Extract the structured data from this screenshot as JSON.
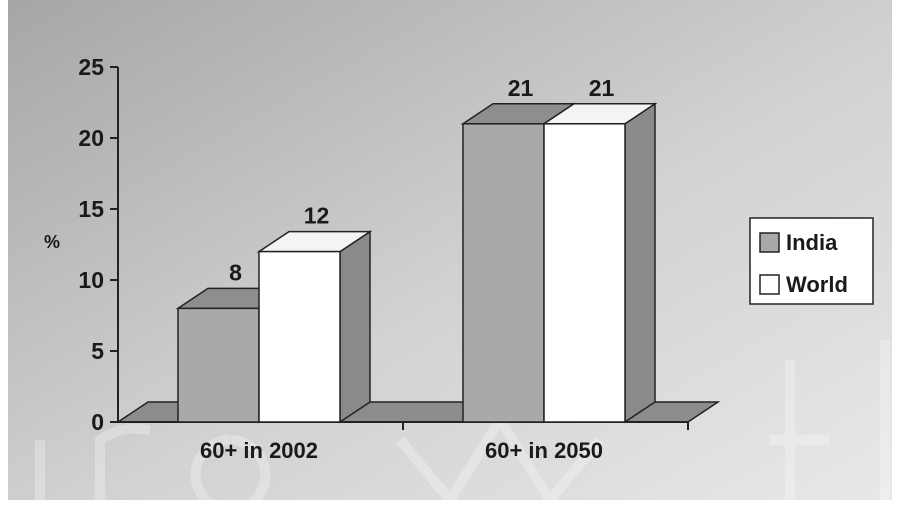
{
  "chart_data": {
    "type": "bar",
    "categories": [
      "60+ in 2002",
      "60+ in 2050"
    ],
    "series": [
      {
        "name": "India",
        "values": [
          8,
          21
        ],
        "color": "#a9a9a9"
      },
      {
        "name": "World",
        "values": [
          12,
          21
        ],
        "color": "#ffffff"
      }
    ],
    "ylabel": "%",
    "ylim": [
      0,
      25
    ],
    "yticks": [
      "0",
      "5",
      "10",
      "15",
      "20",
      "25"
    ],
    "data_labels": [
      [
        "8",
        "21"
      ],
      [
        "12",
        "21"
      ]
    ],
    "legend": {
      "position": "right",
      "entries": [
        "India",
        "World"
      ]
    },
    "three_d": true,
    "grid": false
  }
}
